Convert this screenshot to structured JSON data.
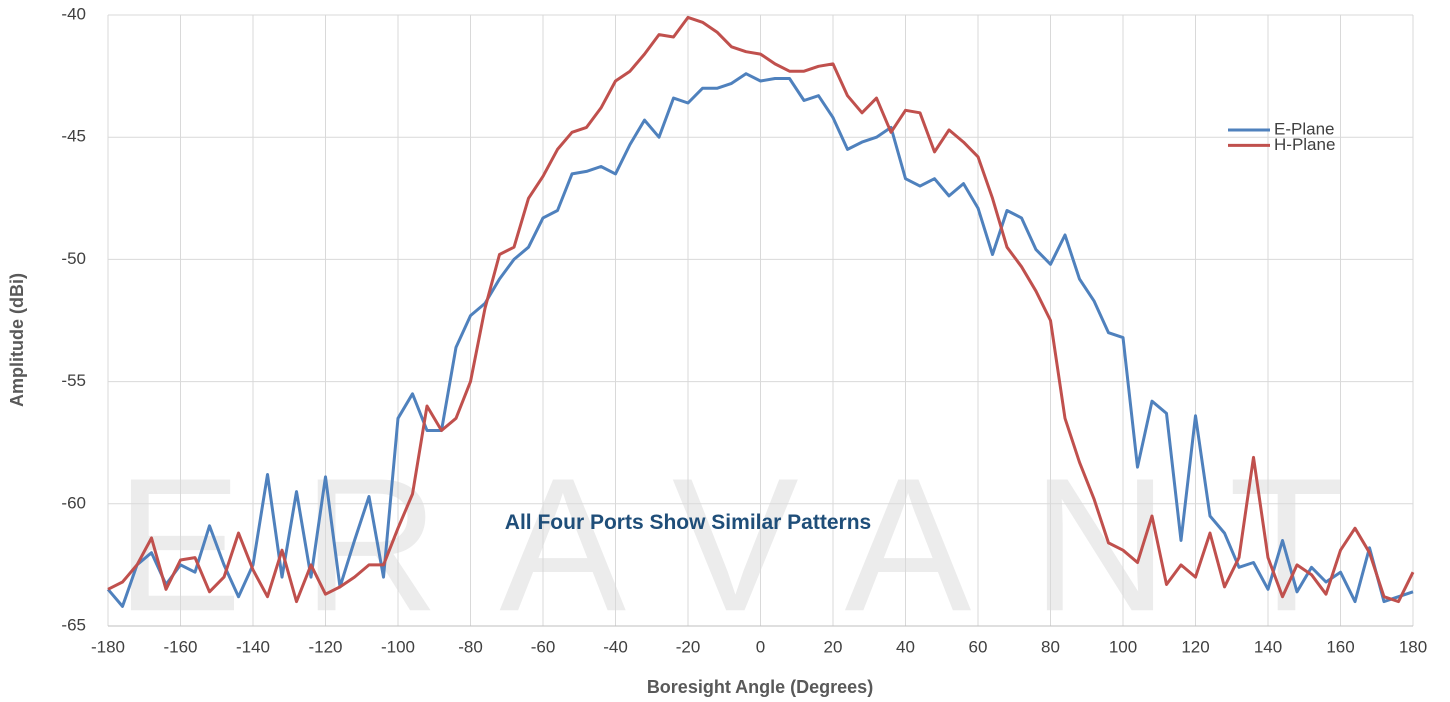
{
  "chart_data": {
    "type": "line",
    "watermark": "ERAVANT",
    "annotation": "All Four Ports Show Similar Patterns",
    "xlabel": "Boresight Angle (Degrees)",
    "ylabel": "Amplitude (dBi)",
    "x": [
      -180,
      -176,
      -172,
      -168,
      -164,
      -160,
      -156,
      -152,
      -148,
      -144,
      -140,
      -136,
      -132,
      -128,
      -124,
      -120,
      -116,
      -112,
      -108,
      -104,
      -100,
      -96,
      -92,
      -88,
      -84,
      -80,
      -76,
      -72,
      -68,
      -64,
      -60,
      -56,
      -52,
      -48,
      -44,
      -40,
      -36,
      -32,
      -28,
      -24,
      -20,
      -16,
      -12,
      -8,
      -4,
      0,
      4,
      8,
      12,
      16,
      20,
      24,
      28,
      32,
      36,
      40,
      44,
      48,
      52,
      56,
      60,
      64,
      68,
      72,
      76,
      80,
      84,
      88,
      92,
      96,
      100,
      104,
      108,
      112,
      116,
      120,
      124,
      128,
      132,
      136,
      140,
      144,
      148,
      152,
      156,
      160,
      164,
      168,
      172,
      176,
      180
    ],
    "series": [
      {
        "name": "E-Plane",
        "color": "#4f81bd",
        "values": [
          -63.5,
          -64.2,
          -62.5,
          -62.0,
          -63.3,
          -62.5,
          -62.8,
          -60.9,
          -62.5,
          -63.8,
          -62.5,
          -58.8,
          -63.0,
          -59.5,
          -63.0,
          -58.9,
          -63.4,
          -61.5,
          -59.7,
          -63.0,
          -56.5,
          -55.5,
          -57.0,
          -57.0,
          -53.6,
          -52.3,
          -51.8,
          -50.8,
          -50.0,
          -49.5,
          -48.3,
          -48.0,
          -46.5,
          -46.4,
          -46.2,
          -46.5,
          -45.3,
          -44.3,
          -45.0,
          -43.4,
          -43.6,
          -43.0,
          -43.0,
          -42.8,
          -42.4,
          -42.7,
          -42.6,
          -42.6,
          -43.5,
          -43.3,
          -44.2,
          -45.5,
          -45.2,
          -45.0,
          -44.6,
          -46.7,
          -47.0,
          -46.7,
          -47.4,
          -46.9,
          -47.9,
          -49.8,
          -48.0,
          -48.3,
          -49.6,
          -50.2,
          -49.0,
          -50.8,
          -51.7,
          -53.0,
          -53.2,
          -58.5,
          -55.8,
          -56.3,
          -61.5,
          -56.4,
          -60.5,
          -61.2,
          -62.6,
          -62.4,
          -63.5,
          -61.5,
          -63.6,
          -62.6,
          -63.2,
          -62.8,
          -64.0,
          -61.8,
          -64.0,
          -63.8,
          -63.6
        ]
      },
      {
        "name": "H-Plane",
        "color": "#c0504d",
        "values": [
          -63.5,
          -63.2,
          -62.5,
          -61.4,
          -63.5,
          -62.3,
          -62.2,
          -63.6,
          -63.0,
          -61.2,
          -62.7,
          -63.8,
          -61.9,
          -64.0,
          -62.5,
          -63.7,
          -63.4,
          -63.0,
          -62.5,
          -62.5,
          -61.0,
          -59.6,
          -56.0,
          -57.0,
          -56.5,
          -55.0,
          -52.0,
          -49.8,
          -49.5,
          -47.5,
          -46.6,
          -45.5,
          -44.8,
          -44.6,
          -43.8,
          -42.7,
          -42.3,
          -41.6,
          -40.8,
          -40.9,
          -40.1,
          -40.3,
          -40.7,
          -41.3,
          -41.5,
          -41.6,
          -42.0,
          -42.3,
          -42.3,
          -42.1,
          -42.0,
          -43.3,
          -44.0,
          -43.4,
          -44.8,
          -43.9,
          -44.0,
          -45.6,
          -44.7,
          -45.2,
          -45.8,
          -47.5,
          -49.5,
          -50.3,
          -51.3,
          -52.5,
          -56.5,
          -58.3,
          -59.8,
          -61.6,
          -61.9,
          -62.4,
          -60.5,
          -63.3,
          -62.5,
          -63.0,
          -61.2,
          -63.4,
          -62.2,
          -58.1,
          -62.2,
          -63.8,
          -62.5,
          -62.9,
          -63.7,
          -61.9,
          -61.0,
          -62.0,
          -63.8,
          -64.0,
          -62.8
        ]
      }
    ],
    "xlim": [
      -180,
      180
    ],
    "xticks": [
      -180,
      -160,
      -140,
      -120,
      -100,
      -80,
      -60,
      -40,
      -20,
      0,
      20,
      40,
      60,
      80,
      100,
      120,
      140,
      160,
      180
    ],
    "ylim": [
      -65,
      -40
    ],
    "yticks": [
      -65,
      -60,
      -55,
      -50,
      -45,
      -40
    ],
    "grid": true,
    "legend": "upper right"
  }
}
